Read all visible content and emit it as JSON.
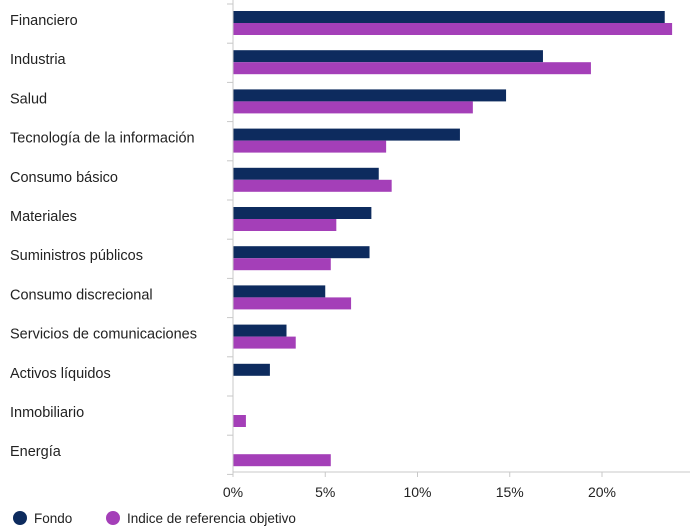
{
  "chart_data": {
    "type": "bar",
    "orientation": "horizontal",
    "categories": [
      "Financiero",
      "Industria",
      "Salud",
      "Tecnología de la información",
      "Consumo básico",
      "Materiales",
      "Suministros públicos",
      "Consumo discrecional",
      "Servicios de comunicaciones",
      "Activos líquidos",
      "Inmobiliario",
      "Energía"
    ],
    "series": [
      {
        "name": "Fondo",
        "color": "#0d2b5e",
        "values": [
          23.4,
          16.8,
          14.8,
          12.3,
          7.9,
          7.5,
          7.4,
          5.0,
          2.9,
          2.0,
          0,
          0
        ]
      },
      {
        "name": "Indice de referencia objetivo",
        "color": "#a43fb8",
        "values": [
          23.8,
          19.4,
          13.0,
          8.3,
          8.6,
          5.6,
          5.3,
          6.4,
          3.4,
          0,
          0.7,
          5.3
        ]
      }
    ],
    "xlim": [
      0,
      25
    ],
    "xticks": [
      0,
      5,
      10,
      15,
      20
    ],
    "xtick_labels": [
      "0%",
      "5%",
      "10%",
      "15%",
      "20%"
    ],
    "title": "",
    "xlabel": "",
    "ylabel": "",
    "grid": false,
    "legend_position": "bottom-left"
  }
}
